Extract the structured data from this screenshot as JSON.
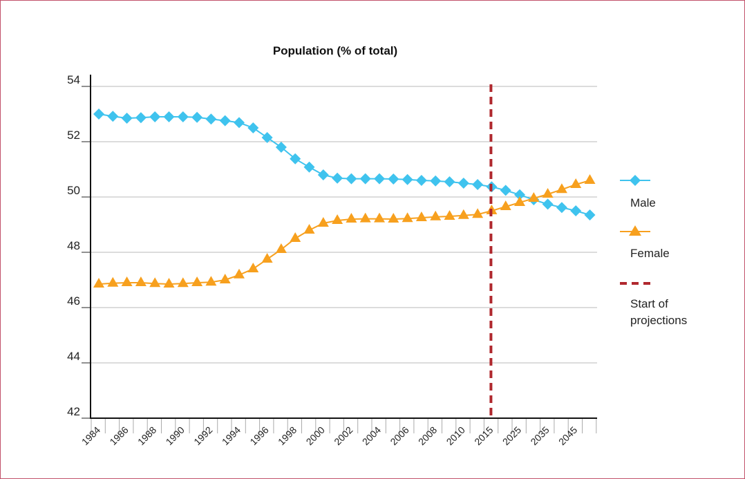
{
  "chart_data": {
    "type": "line",
    "title": "Population (% of total)",
    "ylim": [
      42,
      54
    ],
    "yticks": [
      "54",
      "52",
      "50",
      "48",
      "46",
      "44",
      "42"
    ],
    "categories": [
      "1984",
      "1985",
      "1986",
      "1987",
      "1988",
      "1989",
      "1990",
      "1991",
      "1992",
      "1993",
      "1994",
      "1995",
      "1996",
      "1997",
      "1998",
      "1999",
      "2000",
      "2001",
      "2002",
      "2003",
      "2004",
      "2005",
      "2006",
      "2007",
      "2008",
      "2009",
      "2010",
      "2011",
      "2015",
      "2020",
      "2025",
      "2030",
      "2035",
      "2040",
      "2045",
      "2050"
    ],
    "xtick_labels": [
      "1984",
      "1986",
      "1988",
      "1990",
      "1992",
      "1994",
      "1996",
      "1998",
      "2000",
      "2002",
      "2004",
      "2006",
      "2008",
      "2010",
      "2015",
      "2025",
      "2035",
      "2045"
    ],
    "grid": "horizontal",
    "legend_position": "right",
    "series": [
      {
        "name": "Male",
        "color": "#3fc3ee",
        "marker": "diamond",
        "values": [
          53.0,
          52.92,
          52.85,
          52.87,
          52.9,
          52.9,
          52.9,
          52.88,
          52.82,
          52.76,
          52.69,
          52.5,
          52.15,
          51.8,
          51.38,
          51.08,
          50.8,
          50.68,
          50.66,
          50.66,
          50.66,
          50.65,
          50.63,
          50.6,
          50.58,
          50.55,
          50.5,
          50.45,
          50.37,
          50.24,
          50.08,
          49.9,
          49.74,
          49.62,
          49.5,
          49.35
        ]
      },
      {
        "name": "Female",
        "color": "#f7a01e",
        "marker": "triangle",
        "values": [
          46.85,
          46.88,
          46.9,
          46.9,
          46.87,
          46.85,
          46.87,
          46.9,
          46.92,
          47.0,
          47.18,
          47.4,
          47.75,
          48.1,
          48.5,
          48.8,
          49.05,
          49.15,
          49.2,
          49.21,
          49.21,
          49.2,
          49.22,
          49.25,
          49.28,
          49.3,
          49.33,
          49.37,
          49.5,
          49.65,
          49.8,
          49.95,
          50.1,
          50.27,
          50.45,
          50.6
        ]
      }
    ],
    "projection_marker": {
      "label": "Start of projections",
      "label_line1": "Start of",
      "label_line2": "projections",
      "color": "#b0282e",
      "at_category": "2015"
    }
  }
}
